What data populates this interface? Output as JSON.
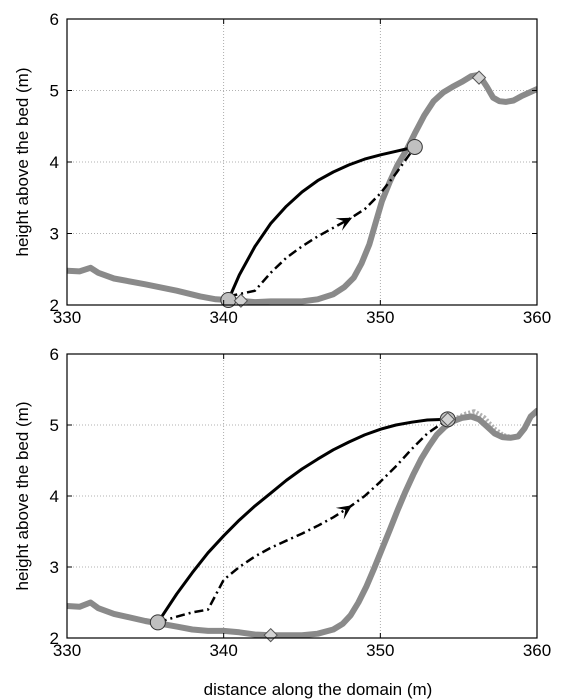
{
  "figure": {
    "xlabel": "distance along the domain (m)"
  },
  "colors": {
    "bed": "#8a8a8a",
    "bed_alt": "#b0b0b0",
    "trajectory": "#000000",
    "marker_circle": "#c0c0c0",
    "marker_diamond": "#d3d3d3",
    "grid": "#999999"
  },
  "chart_data": [
    {
      "type": "line",
      "title": "",
      "xlabel": "",
      "ylabel": "height above the bed (m)",
      "xlim": [
        330,
        360
      ],
      "ylim": [
        2,
        6
      ],
      "xticks": [
        "330",
        "340",
        "350",
        "360"
      ],
      "yticks": [
        "2",
        "3",
        "4",
        "5",
        "6"
      ],
      "grid": true,
      "series": [
        {
          "style": "thick-gray",
          "x": [
            330,
            330.8,
            331.5,
            332,
            333,
            335,
            337,
            338.5,
            339.5,
            340.3,
            341,
            342,
            343,
            344,
            345,
            346,
            347,
            347.7,
            348.3,
            348.8,
            349.3,
            349.7,
            350.1,
            350.6,
            351.1,
            351.7,
            352.2,
            352.8,
            353.4,
            354,
            354.6,
            355.2,
            355.8,
            356.3,
            356.8,
            357.2,
            357.6,
            358,
            358.5,
            359,
            359.5,
            360
          ],
          "y": [
            2.48,
            2.47,
            2.52,
            2.45,
            2.37,
            2.29,
            2.2,
            2.12,
            2.08,
            2.07,
            2.06,
            2.04,
            2.05,
            2.05,
            2.05,
            2.08,
            2.15,
            2.25,
            2.38,
            2.58,
            2.85,
            3.15,
            3.45,
            3.72,
            3.96,
            4.18,
            4.4,
            4.65,
            4.85,
            4.97,
            5.05,
            5.12,
            5.2,
            5.22,
            5.05,
            4.9,
            4.85,
            4.84,
            4.86,
            4.92,
            4.97,
            5.02
          ]
        },
        {
          "style": "solid-black",
          "x": [
            340.3,
            341,
            342,
            343,
            344,
            345,
            346,
            347,
            348,
            349,
            350,
            351,
            352.2
          ],
          "y": [
            2.07,
            2.42,
            2.82,
            3.14,
            3.38,
            3.58,
            3.74,
            3.86,
            3.96,
            4.04,
            4.1,
            4.15,
            4.21
          ]
        },
        {
          "style": "dash-dot-black",
          "x": [
            340.3,
            342,
            343,
            344,
            345,
            346,
            347,
            348,
            349,
            350,
            351,
            352.2
          ],
          "y": [
            2.12,
            2.2,
            2.45,
            2.66,
            2.82,
            2.96,
            3.08,
            3.2,
            3.34,
            3.56,
            3.84,
            4.21
          ]
        }
      ],
      "markers": [
        {
          "shape": "circle",
          "x": 340.3,
          "y": 2.07
        },
        {
          "shape": "circle",
          "x": 352.2,
          "y": 4.21
        },
        {
          "shape": "diamond",
          "x": 341.1,
          "y": 2.06
        },
        {
          "shape": "diamond",
          "x": 356.3,
          "y": 5.18
        }
      ],
      "arrows": [
        {
          "x": 348.2,
          "y": 3.22,
          "angle_from": [
            347.3,
            3.12
          ]
        }
      ]
    },
    {
      "type": "line",
      "title": "",
      "xlabel": "distance along the domain (m)",
      "ylabel": "height above the bed (m)",
      "xlim": [
        330,
        360
      ],
      "ylim": [
        2,
        6
      ],
      "xticks": [
        "330",
        "340",
        "350",
        "360"
      ],
      "yticks": [
        "2",
        "3",
        "4",
        "5",
        "6"
      ],
      "grid": true,
      "series": [
        {
          "style": "thick-gray-dotted",
          "x": [
            354,
            354.8,
            355.5,
            356,
            356.6,
            357.2,
            357.8,
            358.3
          ],
          "y": [
            5.0,
            5.08,
            5.15,
            5.18,
            5.1,
            4.95,
            4.85,
            4.82
          ]
        },
        {
          "style": "thick-gray",
          "x": [
            330,
            330.8,
            331.5,
            332,
            333,
            335,
            337,
            338,
            339,
            340,
            341,
            342,
            343,
            344,
            345,
            346,
            347,
            347.6,
            348.1,
            348.6,
            349.1,
            349.6,
            350.1,
            350.6,
            351.1,
            351.6,
            352.1,
            352.6,
            353.1,
            353.6,
            354.1,
            354.6,
            355.2,
            355.8,
            356.3,
            356.8,
            357.3,
            357.8,
            358.3,
            358.8,
            359.2,
            359.6,
            360
          ],
          "y": [
            2.45,
            2.44,
            2.5,
            2.42,
            2.34,
            2.24,
            2.16,
            2.12,
            2.1,
            2.1,
            2.08,
            2.05,
            2.04,
            2.04,
            2.04,
            2.06,
            2.12,
            2.2,
            2.32,
            2.5,
            2.72,
            2.98,
            3.25,
            3.52,
            3.8,
            4.06,
            4.3,
            4.52,
            4.7,
            4.86,
            4.97,
            5.05,
            5.1,
            5.12,
            5.08,
            4.98,
            4.88,
            4.83,
            4.82,
            4.84,
            4.95,
            5.12,
            5.2
          ]
        },
        {
          "style": "solid-black",
          "x": [
            335.8,
            337,
            338,
            339,
            340,
            341,
            342,
            343,
            344,
            345,
            346,
            347,
            348,
            349,
            350,
            351,
            352,
            353,
            354.3
          ],
          "y": [
            2.22,
            2.62,
            2.92,
            3.2,
            3.44,
            3.66,
            3.86,
            4.04,
            4.22,
            4.38,
            4.52,
            4.65,
            4.76,
            4.86,
            4.94,
            5.0,
            5.04,
            5.07,
            5.08
          ]
        },
        {
          "style": "dash-dot-black",
          "x": [
            335.8,
            337,
            338,
            339,
            340,
            341,
            342,
            343,
            344,
            345,
            346,
            347,
            348,
            349,
            350,
            351,
            352,
            353,
            354.3
          ],
          "y": [
            2.22,
            2.3,
            2.36,
            2.4,
            2.82,
            3.0,
            3.15,
            3.27,
            3.37,
            3.47,
            3.58,
            3.7,
            3.84,
            4.0,
            4.2,
            4.42,
            4.66,
            4.88,
            5.08
          ]
        }
      ],
      "markers": [
        {
          "shape": "circle",
          "x": 335.8,
          "y": 2.22
        },
        {
          "shape": "circle",
          "x": 354.3,
          "y": 5.08
        },
        {
          "shape": "diamond",
          "x": 343.0,
          "y": 2.04
        },
        {
          "shape": "diamond",
          "x": 354.3,
          "y": 5.08
        }
      ],
      "arrows": [
        {
          "x": 348.2,
          "y": 3.87,
          "angle_from": [
            347.2,
            3.72
          ]
        }
      ]
    }
  ]
}
